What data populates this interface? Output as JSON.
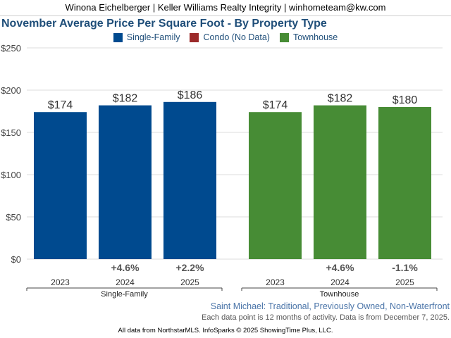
{
  "header": {
    "contact": "Winona Eichelberger | Keller Williams Realty Integrity | winhometeam@kw.com"
  },
  "chart_data": {
    "type": "bar",
    "title": "November Average Price Per Square Foot - By Property Type",
    "legend": [
      {
        "name": "Single-Family",
        "color": "#004a8f"
      },
      {
        "name": "Condo (No Data)",
        "color": "#9b2a2a"
      },
      {
        "name": "Townhouse",
        "color": "#478c35"
      }
    ],
    "ylim": [
      0,
      250
    ],
    "yticks": [
      0,
      50,
      100,
      150,
      200,
      250
    ],
    "ytick_labels": [
      "$0",
      "$50",
      "$100",
      "$150",
      "$200",
      "$250"
    ],
    "groups": [
      {
        "name": "Single-Family",
        "color": "#004a8f",
        "categories": [
          "2023",
          "2024",
          "2025"
        ],
        "values": [
          174,
          182,
          186
        ],
        "value_labels": [
          "$174",
          "$182",
          "$186"
        ],
        "changes": [
          "",
          "+4.6%",
          "+2.2%"
        ]
      },
      {
        "name": "Townhouse",
        "color": "#478c35",
        "categories": [
          "2023",
          "2024",
          "2025"
        ],
        "values": [
          174,
          182,
          180
        ],
        "value_labels": [
          "$174",
          "$182",
          "$180"
        ],
        "changes": [
          "",
          "+4.6%",
          "-1.1%"
        ]
      }
    ]
  },
  "subtitle": "Saint Michael: Traditional, Previously Owned, Non-Waterfront",
  "note": "Each data point is 12 months of activity. Data is from December 7, 2025.",
  "footer": "All data from NorthstarMLS. InfoSparks © 2025 ShowingTime Plus, LLC."
}
